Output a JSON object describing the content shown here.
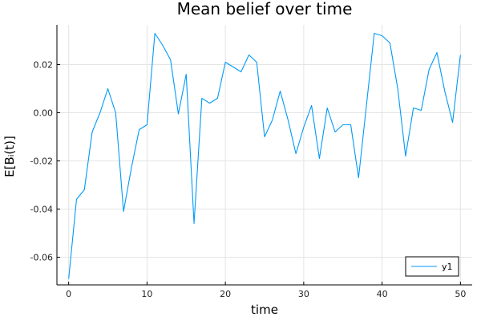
{
  "chart_data": {
    "type": "line",
    "title": "Mean belief over time",
    "xlabel": "time",
    "ylabel": "E[Bᵢ(t)]",
    "xlim": [
      -1.5,
      51.5
    ],
    "ylim": [
      -0.0715,
      0.0365
    ],
    "xticks": [
      0,
      10,
      20,
      30,
      40,
      50
    ],
    "xtick_labels": [
      "0",
      "10",
      "20",
      "30",
      "40",
      "50"
    ],
    "yticks": [
      -0.06,
      -0.04,
      -0.02,
      0.0,
      0.02
    ],
    "ytick_labels": [
      "-0.06",
      "-0.04",
      "-0.02",
      "0.00",
      "0.02"
    ],
    "grid": true,
    "legend": "bottom-right",
    "colors": {
      "series": "#009af9",
      "grid": "#e4e4e4",
      "axis": "#000000"
    },
    "series": [
      {
        "name": "y1",
        "x": [
          0,
          1,
          2,
          3,
          4,
          5,
          6,
          7,
          8,
          9,
          10,
          11,
          12,
          13,
          14,
          15,
          16,
          17,
          18,
          19,
          20,
          21,
          22,
          23,
          24,
          25,
          26,
          27,
          28,
          29,
          30,
          31,
          32,
          33,
          34,
          35,
          36,
          37,
          38,
          39,
          40,
          41,
          42,
          43,
          44,
          45,
          46,
          47,
          48,
          49,
          50
        ],
        "y": [
          -0.069,
          -0.036,
          -0.032,
          -0.008,
          0.0,
          0.01,
          0.0,
          -0.041,
          -0.023,
          -0.007,
          -0.005,
          0.033,
          0.028,
          0.022,
          -0.0005,
          0.016,
          -0.046,
          0.006,
          0.004,
          0.006,
          0.021,
          0.019,
          0.017,
          0.024,
          0.021,
          -0.01,
          -0.003,
          0.009,
          -0.003,
          -0.017,
          -0.006,
          0.003,
          -0.019,
          0.002,
          -0.008,
          -0.005,
          -0.005,
          -0.027,
          0.003,
          0.033,
          0.032,
          0.029,
          0.01,
          -0.018,
          0.002,
          0.001,
          0.018,
          0.025,
          0.009,
          -0.004,
          0.024
        ]
      }
    ]
  }
}
